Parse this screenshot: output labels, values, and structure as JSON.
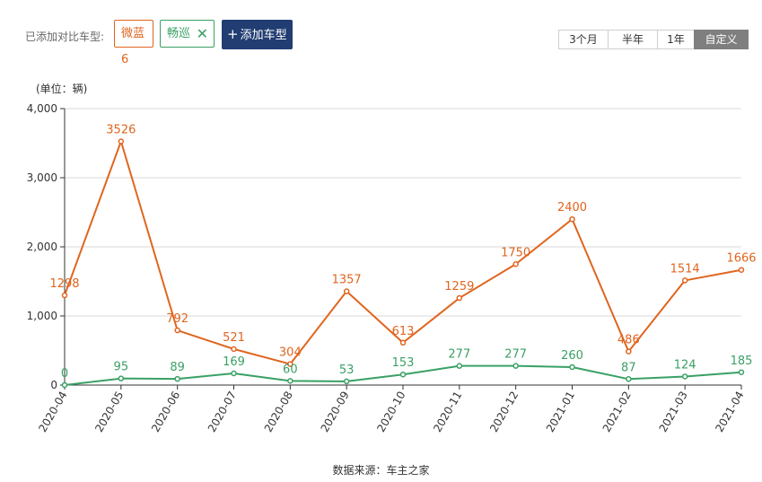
{
  "header": {
    "added_label": "已添加对比车型:",
    "tags": [
      {
        "label": "微蓝6",
        "color": "#e0651f"
      },
      {
        "label": "畅巡",
        "color": "#3aa065"
      }
    ],
    "remove_icon": "close-icon",
    "add_button": {
      "plus": "+",
      "label": "添加车型",
      "color": "#213d72"
    },
    "ranges": [
      {
        "label": "3个月",
        "active": false
      },
      {
        "label": "半年",
        "active": false
      },
      {
        "label": "1年",
        "active": false
      },
      {
        "label": "自定义",
        "active": true
      }
    ]
  },
  "unit_label": "(单位：辆)",
  "source_label": "数据来源：车主之家",
  "chart_data": {
    "type": "line",
    "categories": [
      "2020-04",
      "2020-05",
      "2020-06",
      "2020-07",
      "2020-08",
      "2020-09",
      "2020-10",
      "2020-11",
      "2020-12",
      "2021-01",
      "2021-02",
      "2021-03",
      "2021-04"
    ],
    "series": [
      {
        "name": "微蓝6",
        "color": "#e0651f",
        "values": [
          1298,
          3526,
          792,
          521,
          304,
          1357,
          613,
          1259,
          1750,
          2400,
          486,
          1514,
          1666
        ]
      },
      {
        "name": "畅巡",
        "color": "#3aa065",
        "values": [
          0,
          95,
          89,
          169,
          60,
          53,
          153,
          277,
          277,
          260,
          87,
          124,
          185
        ]
      }
    ],
    "y_ticks": [
      "0",
      "1,000",
      "2,000",
      "3,000",
      "4,000"
    ],
    "ylim": [
      0,
      4000
    ],
    "grid": true,
    "xlabel": "",
    "ylabel": "(单位：辆)"
  }
}
